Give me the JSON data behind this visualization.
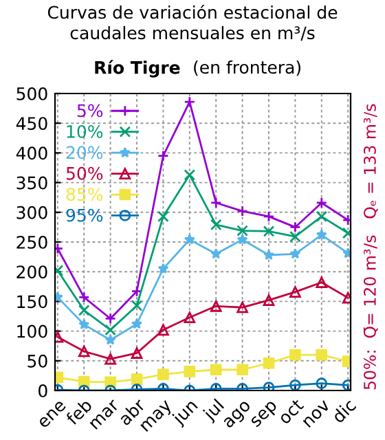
{
  "chart_data": {
    "type": "line",
    "title": "Curvas de variación estacional de\ncaudales mensuales en m³/s",
    "subtitle": [
      "Río Tigre",
      "(en frontera)"
    ],
    "categories": [
      "ene",
      "feb",
      "mar",
      "abr",
      "may",
      "jun",
      "jul",
      "ago",
      "sep",
      "oct",
      "nov",
      "dic"
    ],
    "series": [
      {
        "name": "5%",
        "color": "#9400d3",
        "marker": "plus",
        "values": [
          239,
          157,
          121,
          167,
          395,
          486,
          316,
          302,
          293,
          275,
          316,
          287
        ]
      },
      {
        "name": "10%",
        "color": "#009e73",
        "marker": "x",
        "values": [
          202,
          135,
          102,
          143,
          293,
          363,
          279,
          269,
          268,
          259,
          293,
          265
        ]
      },
      {
        "name": "20%",
        "color": "#56b4e9",
        "marker": "star",
        "values": [
          157,
          111,
          85,
          112,
          205,
          254,
          230,
          254,
          228,
          230,
          262,
          231
        ]
      },
      {
        "name": "50%",
        "color": "#c0003c",
        "marker": "triangle",
        "values": [
          90,
          66,
          53,
          63,
          102,
          123,
          142,
          140,
          152,
          166,
          182,
          156
        ]
      },
      {
        "name": "85%",
        "color": "#f0e442",
        "marker": "square",
        "values": [
          22,
          15,
          14,
          19,
          27,
          32,
          35,
          35,
          46,
          60,
          60,
          49
        ]
      },
      {
        "name": "95%",
        "color": "#0072b2",
        "marker": "circle",
        "values": [
          1,
          0,
          0,
          2,
          3,
          0,
          3,
          3,
          5,
          9,
          12,
          9
        ]
      }
    ],
    "ylim": [
      0,
      500
    ],
    "yticks": [
      0,
      50,
      100,
      150,
      200,
      250,
      300,
      350,
      400,
      450,
      500
    ],
    "grid": true,
    "legend": "top left",
    "annotations": [
      "50%:  Q̄= 120 m³/s   Qₑ = 133 m³/s"
    ]
  }
}
